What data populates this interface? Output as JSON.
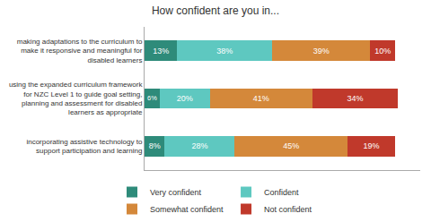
{
  "chart_data": {
    "type": "bar",
    "orientation": "horizontal",
    "stacked": true,
    "title": "How confident are you in...",
    "categories": [
      "making adaptations to the curriculum to\nmake it responsive and meaningful for\ndisabled learners",
      "using the expanded curriculum framework\nfor NZC Level 1 to guide goal setting,\nplanning and assessment for disabled\nlearners as appropriate",
      "incorporating assistive technology to\nsupport participation and learning"
    ],
    "series": [
      {
        "name": "Very confident",
        "color": "#2e8b7a",
        "values": [
          13,
          6,
          8
        ],
        "value_labels": [
          "13%",
          "6%",
          "8%"
        ]
      },
      {
        "name": "Confident",
        "color": "#5ec8c0",
        "values": [
          38,
          20,
          28
        ],
        "value_labels": [
          "38%",
          "20%",
          "28%"
        ]
      },
      {
        "name": "Somewhat confident",
        "color": "#d4883a",
        "values": [
          39,
          41,
          45
        ],
        "value_labels": [
          "39%",
          "41%",
          "45%"
        ]
      },
      {
        "name": "Not confident",
        "color": "#c0392b",
        "values": [
          10,
          34,
          19
        ],
        "value_labels": [
          "10%",
          "34%",
          "19%"
        ]
      }
    ],
    "xlim": [
      0,
      110
    ],
    "data_labels": true,
    "tick_labels": "y",
    "grid": false,
    "legend": "bottom"
  }
}
